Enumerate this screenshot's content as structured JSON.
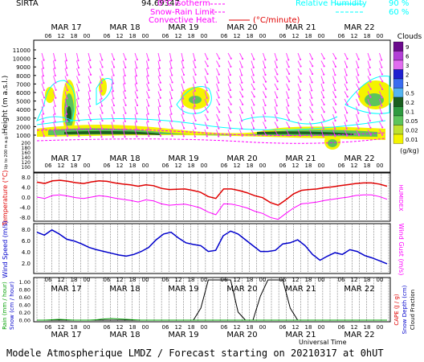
{
  "header": {
    "station": "SIRTA",
    "coord": "94.69347",
    "legend_iso0": "0°C isotherm",
    "legend_rain_snow": "Snow-Rain Limit",
    "legend_convective": "Convective Heat.",
    "legend_convective_unit": "(°C/minute)",
    "legend_rh_label": "Relative Humidity",
    "legend_rh_90": "90 %",
    "legend_rh_60": "60 %"
  },
  "footer": {
    "text": "Modele Atmospherique LMDZ / Forecast starting on 20210317 at 0hUT"
  },
  "colors": {
    "magenta": "#ff00ff",
    "cyan": "#00ffff",
    "red": "#e00000",
    "blue": "#0000cc",
    "purple_text": "#cc33cc"
  },
  "chart_data": [
    {
      "type": "heatmap",
      "panel": "clouds-height",
      "ylabel": "Height (m a.s.l.)",
      "ylabel_low": "Up to 200 m a.g.l.",
      "yticks_upper": [
        "11000",
        "10000",
        "9000",
        "8000",
        "7000",
        "6000",
        "5000",
        "4000",
        "3000",
        "2000",
        "1000"
      ],
      "yticks_lower": [
        "200",
        "180",
        "160",
        "140",
        "120",
        "100"
      ],
      "days": [
        "MAR 17",
        "MAR 18",
        "MAR 19",
        "MAR 20",
        "MAR 21",
        "MAR 22"
      ],
      "hours": [
        "06",
        "12",
        "18",
        "00"
      ],
      "colorbar_title": "Clouds",
      "colorbar_unit": "(g/kg)",
      "colorbar_labels": [
        "9",
        "6",
        "3",
        "2",
        "1",
        "0.5",
        "0.2",
        "0.1",
        "0.05",
        "0.02",
        "0.01"
      ],
      "colorbar_colors": [
        "#6a0a8c",
        "#b23fd6",
        "#e16cf0",
        "#2020d0",
        "#3a6cf0",
        "#55b4f0",
        "#1b5e20",
        "#2e9a40",
        "#5cc45c",
        "#bfe030",
        "#f4f400"
      ]
    },
    {
      "type": "line",
      "panel": "temperature",
      "ylabel": "Temperature (°C)",
      "ylabel_right": "HUMIDEX",
      "yticks": [
        "8.0",
        "4.0",
        "0.0",
        "-4.0",
        "-8.0"
      ],
      "ylim": [
        -8,
        8
      ],
      "days": [
        "MAR 17",
        "MAR 18",
        "MAR 19",
        "MAR 20",
        "MAR 21",
        "MAR 22"
      ],
      "series": [
        {
          "values": [
            5.5,
            5.0,
            6.0,
            6.2,
            5.8,
            5.3,
            5.0,
            5.6,
            6.0,
            5.8,
            5.2,
            4.8,
            4.5,
            4.0,
            4.5,
            4.2,
            3.2,
            2.8,
            2.9,
            3.0,
            2.5,
            1.8,
            0.2,
            -0.5,
            3.0,
            3.0,
            2.4,
            1.6,
            0.5,
            -0.2,
            -2.0,
            -3.0,
            -1.0,
            1.2,
            2.5,
            2.8,
            3.0,
            3.5,
            3.8,
            4.2,
            4.6,
            5.0,
            5.2,
            5.2,
            4.8,
            4.0
          ]
        },
        {
          "values": [
            0.0,
            -0.5,
            0.6,
            0.8,
            0.4,
            -0.2,
            -0.5,
            0.0,
            0.5,
            0.2,
            -0.4,
            -0.8,
            -1.2,
            -1.8,
            -1.0,
            -1.4,
            -2.5,
            -3.0,
            -2.8,
            -2.6,
            -3.2,
            -4.0,
            -5.5,
            -6.5,
            -2.5,
            -2.6,
            -3.2,
            -4.0,
            -5.2,
            -6.0,
            -7.5,
            -8.2,
            -6.0,
            -4.0,
            -2.5,
            -2.2,
            -1.8,
            -1.2,
            -0.8,
            -0.4,
            0.0,
            0.6,
            0.8,
            0.8,
            0.2,
            -0.8
          ]
        }
      ]
    },
    {
      "type": "line",
      "panel": "wind",
      "ylabel": "Wind Speed (m/s)",
      "ylabel_right": "Wind Gust (m/s)",
      "yticks": [
        "8.0",
        "6.0",
        "4.0",
        "2.0"
      ],
      "ylim": [
        1,
        9
      ],
      "days": [
        "MAR 17",
        "MAR 18",
        "MAR 19",
        "MAR 20",
        "MAR 21",
        "MAR 22"
      ],
      "series": [
        {
          "values": [
            7.8,
            7.3,
            8.2,
            7.5,
            6.6,
            6.3,
            5.8,
            5.2,
            4.8,
            4.5,
            4.2,
            3.9,
            3.7,
            4.0,
            4.5,
            5.2,
            6.5,
            7.5,
            7.8,
            6.8,
            6.0,
            5.7,
            5.5,
            4.5,
            4.7,
            7.2,
            8.0,
            7.5,
            6.5,
            5.5,
            4.5,
            4.5,
            4.7,
            5.8,
            6.0,
            6.5,
            5.5,
            4.0,
            3.0,
            3.7,
            4.3,
            4.0,
            4.8,
            4.5,
            3.8,
            3.4,
            2.9,
            2.4
          ]
        }
      ]
    },
    {
      "type": "line",
      "panel": "precipitation",
      "ylabel_left1": "Rain (mm / hour)",
      "ylabel_left2": "Snow (cm / hour)",
      "ylabel_right1": "CAPE (J / g)",
      "ylabel_right2": "Snow Depth (cm)",
      "ylabel_right3": "Cloud Fraction",
      "xlabel": "Universal Time",
      "yticks": [
        "1.00",
        "0.80",
        "0.60",
        "0.40",
        "0.20",
        "0.00"
      ],
      "ylim": [
        0,
        1
      ],
      "days": [
        "MAR 17",
        "MAR 18",
        "MAR 19",
        "MAR 20",
        "MAR 21",
        "MAR 22"
      ],
      "series": [
        {
          "values": [
            0,
            0,
            0,
            0,
            0,
            0,
            0,
            0,
            0,
            0,
            0,
            0,
            0,
            0,
            0,
            0,
            0,
            0,
            0,
            0,
            0,
            0,
            0.3,
            1.0,
            1.0,
            1.0,
            1.0,
            0.2,
            0,
            0,
            0.6,
            1.0,
            1.0,
            1.0,
            0.3,
            0,
            0,
            0,
            0,
            0,
            0,
            0,
            0,
            0,
            0,
            0,
            0,
            0
          ]
        },
        {
          "values": [
            0,
            0,
            0.01,
            0.02,
            0.01,
            0,
            0,
            0,
            0.01,
            0.03,
            0.04,
            0.03,
            0.02,
            0.01,
            0,
            0,
            0,
            0,
            0,
            0,
            0,
            0,
            0,
            0,
            0,
            0,
            0,
            0,
            0,
            0,
            0,
            0,
            0,
            0,
            0,
            0,
            0,
            0,
            0,
            0,
            0,
            0,
            0,
            0,
            0,
            0,
            0,
            0
          ]
        }
      ]
    }
  ]
}
